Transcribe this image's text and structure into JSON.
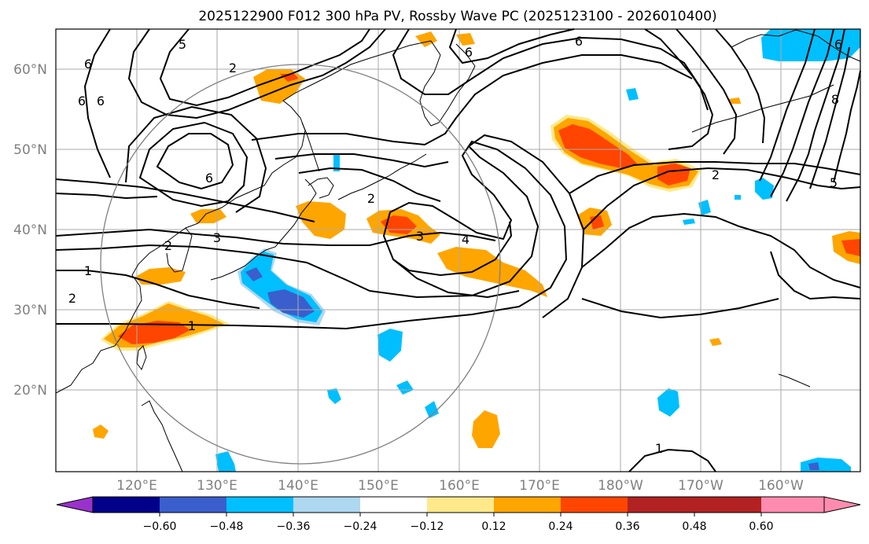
{
  "title": "2025122900 F012 300 hPa PV, Rossby Wave PC (2025123100 - 2026010400)",
  "lat_labels": [
    "60°N",
    "50°N",
    "40°N",
    "30°N",
    "20°N"
  ],
  "lon_labels": [
    "120°E",
    "130°E",
    "140°E",
    "150°E",
    "160°E",
    "170°E",
    "180°W",
    "170°W",
    "160°W"
  ],
  "colorbar": {
    "labels": [
      "−0.60",
      "−0.48",
      "−0.36",
      "−0.24",
      "−0.12",
      "0.12",
      "0.24",
      "0.36",
      "0.48",
      "0.60"
    ],
    "colors": [
      "#9932CC",
      "#00008B",
      "#3A5FCD",
      "#00BFFF",
      "#ADD8F0",
      "#FFFFFF",
      "#FFE98A",
      "#FFA500",
      "#FF4500",
      "#B22222",
      "#FF8CB0"
    ]
  },
  "contour_labels": {
    "pv_6": "6",
    "pv_5": "5",
    "pv_4": "4",
    "pv_3": "3",
    "pv_2": "2",
    "pv_1": "1"
  },
  "anomaly_colors": {
    "pos_low": "#FFE98A",
    "pos_mid": "#FFA500",
    "pos_high": "#FF4500",
    "neg_low": "#ADD8F0",
    "neg_mid": "#00BFFF",
    "neg_high": "#3A5FCD"
  }
}
